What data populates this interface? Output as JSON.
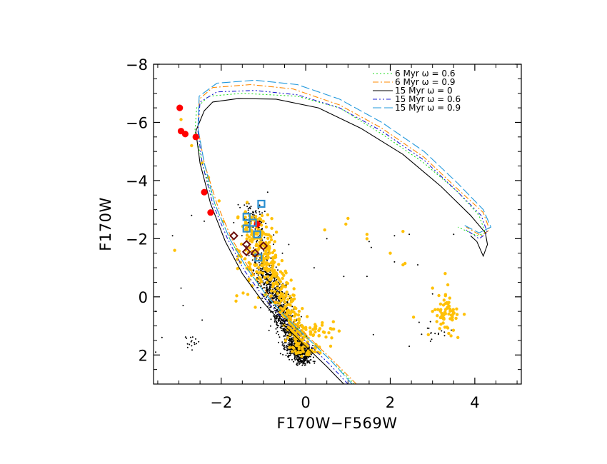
{
  "chart_data": {
    "type": "scatter",
    "xlabel": "F170W−F569W",
    "ylabel": "F170W",
    "xlim": [
      -3.6,
      5.1
    ],
    "ylim": [
      3.0,
      -8.0
    ],
    "x_ticks": [
      {
        "value": -2,
        "label": "−2"
      },
      {
        "value": 0,
        "label": "0"
      },
      {
        "value": 2,
        "label": "2"
      },
      {
        "value": 4,
        "label": "4"
      }
    ],
    "y_ticks": [
      {
        "value": -8,
        "label": "−8"
      },
      {
        "value": -6,
        "label": "−6"
      },
      {
        "value": -4,
        "label": "−4"
      },
      {
        "value": -2,
        "label": "−2"
      },
      {
        "value": 0,
        "label": "0"
      },
      {
        "value": 2,
        "label": "2"
      }
    ],
    "legend": {
      "placement": "top-right",
      "entries": [
        {
          "label": "6 Myr ω = 0.6",
          "color": "#22dd22",
          "dash": "2,3"
        },
        {
          "label": "6 Myr ω = 0.9",
          "color": "#ff8800",
          "dash": "8,3,2,3"
        },
        {
          "label": "15 Myr ω = 0",
          "color": "#000000",
          "dash": ""
        },
        {
          "label": "15 Myr ω = 0.6",
          "color": "#1f1fd0",
          "dash": "6,3,2,3,2,3"
        },
        {
          "label": "15 Myr ω = 0.9",
          "color": "#2299dd",
          "dash": "12,4"
        }
      ]
    },
    "isochrones": [
      {
        "name": "6 Myr ω = 0.6",
        "color": "#22dd22",
        "dash": "2,3",
        "points": [
          [
            1.15,
            3.0
          ],
          [
            0.6,
            2.2
          ],
          [
            0.1,
            1.5
          ],
          [
            -0.4,
            0.8
          ],
          [
            -0.9,
            0.0
          ],
          [
            -1.4,
            -1.0
          ],
          [
            -1.8,
            -2.0
          ],
          [
            -2.15,
            -3.2
          ],
          [
            -2.45,
            -4.6
          ],
          [
            -2.62,
            -5.7
          ],
          [
            -2.58,
            -6.5
          ],
          [
            -2.3,
            -6.9
          ],
          [
            -1.5,
            -7.0
          ],
          [
            -0.2,
            -6.9
          ],
          [
            0.8,
            -6.5
          ],
          [
            1.8,
            -5.6
          ],
          [
            2.8,
            -4.6
          ],
          [
            3.6,
            -3.6
          ],
          [
            4.1,
            -2.8
          ],
          [
            4.25,
            -2.2
          ],
          [
            4.05,
            -2.1
          ],
          [
            3.6,
            -2.4
          ]
        ]
      },
      {
        "name": "6 Myr ω = 0.9",
        "color": "#ff8800",
        "dash": "8,3,2,3",
        "points": [
          [
            1.2,
            3.0
          ],
          [
            0.65,
            2.2
          ],
          [
            0.15,
            1.5
          ],
          [
            -0.35,
            0.8
          ],
          [
            -0.85,
            0.0
          ],
          [
            -1.35,
            -1.0
          ],
          [
            -1.75,
            -2.0
          ],
          [
            -2.1,
            -3.2
          ],
          [
            -2.4,
            -4.6
          ],
          [
            -2.55,
            -5.8
          ],
          [
            -2.52,
            -6.8
          ],
          [
            -2.2,
            -7.2
          ],
          [
            -1.3,
            -7.3
          ],
          [
            -0.3,
            -7.15
          ],
          [
            0.8,
            -6.6
          ],
          [
            1.8,
            -5.8
          ],
          [
            2.8,
            -4.8
          ],
          [
            3.6,
            -3.7
          ],
          [
            4.2,
            -2.9
          ],
          [
            4.35,
            -2.3
          ],
          [
            4.15,
            -2.1
          ],
          [
            3.8,
            -2.4
          ]
        ]
      },
      {
        "name": "15 Myr ω = 0",
        "color": "#000000",
        "dash": "",
        "points": [
          [
            0.9,
            3.0
          ],
          [
            0.5,
            2.4
          ],
          [
            0.0,
            1.7
          ],
          [
            -0.5,
            1.0
          ],
          [
            -1.0,
            0.2
          ],
          [
            -1.5,
            -0.8
          ],
          [
            -1.9,
            -1.9
          ],
          [
            -2.25,
            -3.2
          ],
          [
            -2.5,
            -4.6
          ],
          [
            -2.6,
            -5.7
          ],
          [
            -2.4,
            -6.4
          ],
          [
            -2.2,
            -6.7
          ],
          [
            -1.6,
            -6.82
          ],
          [
            -0.7,
            -6.8
          ],
          [
            0.3,
            -6.5
          ],
          [
            1.3,
            -5.8
          ],
          [
            2.3,
            -4.9
          ],
          [
            3.2,
            -3.8
          ],
          [
            3.9,
            -2.8
          ],
          [
            4.25,
            -2.2
          ],
          [
            4.3,
            -1.8
          ],
          [
            4.2,
            -1.4
          ],
          [
            4.05,
            -1.9
          ],
          [
            3.9,
            -2.1
          ]
        ]
      },
      {
        "name": "15 Myr ω = 0.6",
        "color": "#1f1fd0",
        "dash": "6,3,2,3,2,3",
        "points": [
          [
            1.0,
            3.0
          ],
          [
            0.55,
            2.3
          ],
          [
            0.05,
            1.6
          ],
          [
            -0.45,
            0.9
          ],
          [
            -0.95,
            0.1
          ],
          [
            -1.45,
            -0.9
          ],
          [
            -1.85,
            -2.0
          ],
          [
            -2.2,
            -3.2
          ],
          [
            -2.45,
            -4.6
          ],
          [
            -2.55,
            -5.7
          ],
          [
            -2.5,
            -6.7
          ],
          [
            -2.1,
            -7.05
          ],
          [
            -1.2,
            -7.1
          ],
          [
            -0.2,
            -6.95
          ],
          [
            0.8,
            -6.5
          ],
          [
            1.8,
            -5.7
          ],
          [
            2.8,
            -4.7
          ],
          [
            3.6,
            -3.6
          ],
          [
            4.15,
            -2.8
          ],
          [
            4.3,
            -2.2
          ],
          [
            4.1,
            -2.0
          ],
          [
            3.8,
            -2.3
          ]
        ]
      },
      {
        "name": "15 Myr ω = 0.9",
        "color": "#2299dd",
        "dash": "12,4",
        "points": [
          [
            1.1,
            3.0
          ],
          [
            0.6,
            2.2
          ],
          [
            0.1,
            1.5
          ],
          [
            -0.4,
            0.8
          ],
          [
            -0.9,
            0.0
          ],
          [
            -1.4,
            -1.0
          ],
          [
            -1.8,
            -2.0
          ],
          [
            -2.15,
            -3.2
          ],
          [
            -2.4,
            -4.6
          ],
          [
            -2.55,
            -5.8
          ],
          [
            -2.52,
            -6.9
          ],
          [
            -2.1,
            -7.35
          ],
          [
            -1.2,
            -7.45
          ],
          [
            -0.2,
            -7.3
          ],
          [
            0.8,
            -6.8
          ],
          [
            1.8,
            -6.0
          ],
          [
            2.8,
            -5.0
          ],
          [
            3.6,
            -3.9
          ],
          [
            4.2,
            -3.0
          ],
          [
            4.38,
            -2.4
          ],
          [
            4.1,
            -2.2
          ],
          [
            3.7,
            -2.5
          ]
        ]
      }
    ],
    "series": [
      {
        "name": "red filled circles",
        "marker": "circle",
        "color": "#ff0000",
        "points": [
          [
            -2.98,
            -6.5
          ],
          [
            -2.95,
            -5.7
          ],
          [
            -2.85,
            -5.6
          ],
          [
            -2.6,
            -5.5
          ],
          [
            -2.4,
            -3.6
          ],
          [
            -2.25,
            -2.9
          ],
          [
            -1.15,
            -2.5
          ]
        ]
      },
      {
        "name": "blue open squares",
        "marker": "square",
        "color": "#2b8fd0",
        "points": [
          [
            -1.05,
            -3.2
          ],
          [
            -1.4,
            -2.75
          ],
          [
            -1.25,
            -2.55
          ],
          [
            -1.4,
            -2.35
          ],
          [
            -1.15,
            -2.15
          ],
          [
            -1.12,
            -1.35
          ]
        ]
      },
      {
        "name": "dark red open diamonds",
        "marker": "diamond",
        "color": "#6b1010",
        "points": [
          [
            -1.7,
            -2.1
          ],
          [
            -1.4,
            -1.8
          ],
          [
            -1.0,
            -1.75
          ],
          [
            -1.4,
            -1.55
          ],
          [
            -1.2,
            -1.5
          ]
        ]
      },
      {
        "name": "yellow filled circles",
        "marker": "dot",
        "color": "#ffc107",
        "size": 2.2,
        "clusters": [
          {
            "kind": "band",
            "count": 360,
            "y_range": [
              -2.8,
              2.0
            ],
            "x_at_y_top": -1.3,
            "x_at_y_bottom": 0.0,
            "width": 0.22
          },
          {
            "kind": "blob",
            "count": 70,
            "center": [
              -1.3,
              -1.5
            ],
            "spread": [
              0.28,
              1.3
            ]
          },
          {
            "kind": "blob",
            "count": 45,
            "center": [
              0.2,
              1.3
            ],
            "spread": [
              0.45,
              0.45
            ]
          },
          {
            "kind": "blob",
            "count": 60,
            "center": [
              3.35,
              0.6
            ],
            "spread": [
              0.22,
              0.55
            ]
          },
          {
            "kind": "points",
            "points": [
              [
                -2.95,
                -6.1
              ],
              [
                -3.1,
                -1.6
              ],
              [
                -2.7,
                -5.2
              ],
              [
                -2.45,
                -4.6
              ],
              [
                -2.3,
                -4.1
              ],
              [
                -2.05,
                -3.3
              ],
              [
                -1.95,
                -2.6
              ],
              [
                0.45,
                -2.3
              ],
              [
                1.0,
                -2.7
              ],
              [
                0.95,
                -2.5
              ],
              [
                1.45,
                -2.15
              ],
              [
                1.45,
                -2.0
              ],
              [
                2.0,
                -1.5
              ],
              [
                2.3,
                -2.25
              ],
              [
                2.35,
                -1.15
              ],
              [
                2.3,
                -1.1
              ],
              [
                3.0,
                -0.3
              ],
              [
                3.0,
                0.5
              ],
              [
                2.9,
                1.3
              ],
              [
                3.75,
                0.6
              ],
              [
                3.6,
                1.4
              ],
              [
                2.55,
                0.7
              ],
              [
                3.3,
                -0.8
              ]
            ]
          }
        ]
      },
      {
        "name": "black dots",
        "marker": "dot",
        "color": "#000000",
        "size": 1.0,
        "clusters": [
          {
            "kind": "band",
            "count": 1100,
            "y_range": [
              -1.0,
              2.3
            ],
            "x_at_y_top": -1.0,
            "x_at_y_bottom": -0.05,
            "width": 0.2
          },
          {
            "kind": "blob",
            "count": 230,
            "center": [
              -0.2,
              1.8
            ],
            "spread": [
              0.22,
              0.2
            ]
          },
          {
            "kind": "band",
            "count": 160,
            "y_range": [
              -3.2,
              -1.0
            ],
            "x_at_y_top": -1.3,
            "x_at_y_bottom": -1.0,
            "width": 0.2
          },
          {
            "kind": "blob",
            "count": 16,
            "center": [
              -2.7,
              1.6
            ],
            "spread": [
              0.18,
              0.22
            ]
          },
          {
            "kind": "blob",
            "count": 16,
            "center": [
              3.1,
              1.2
            ],
            "spread": [
              0.4,
              0.35
            ]
          },
          {
            "kind": "points",
            "points": [
              [
                -2.7,
                -2.8
              ],
              [
                -3.15,
                -2.1
              ],
              [
                -2.4,
                -2.6
              ],
              [
                -2.95,
                -0.3
              ],
              [
                -2.9,
                0.3
              ],
              [
                -3.4,
                1.4
              ],
              [
                -3.55,
                0.5
              ],
              [
                -3.55,
                1.9
              ],
              [
                -2.45,
                0.8
              ],
              [
                -0.9,
                -3.6
              ],
              [
                -0.55,
                -1.5
              ],
              [
                -0.4,
                -1.8
              ],
              [
                0.5,
                -2.0
              ],
              [
                0.9,
                -0.7
              ],
              [
                1.5,
                -1.9
              ],
              [
                1.55,
                -1.7
              ],
              [
                1.45,
                -0.7
              ],
              [
                1.6,
                1.3
              ],
              [
                2.1,
                -1.2
              ],
              [
                2.1,
                -2.1
              ],
              [
                2.45,
                -2.15
              ],
              [
                2.65,
                -1.1
              ],
              [
                2.45,
                1.7
              ],
              [
                3.0,
                -0.1
              ],
              [
                3.5,
                -2.15
              ],
              [
                0.2,
                -1.0
              ]
            ]
          }
        ]
      }
    ]
  }
}
